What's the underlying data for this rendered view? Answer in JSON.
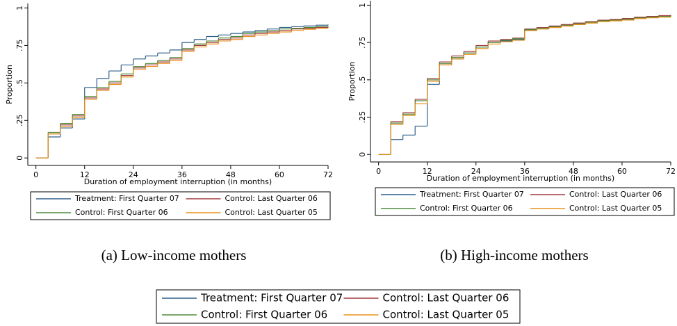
{
  "chart_data": [
    {
      "type": "step",
      "caption": "(a) Low-income mothers",
      "ylabel": "Proportion",
      "xlabel": "Duration of employment interruption (in months)",
      "x": [
        0,
        3,
        6,
        9,
        12,
        15,
        18,
        21,
        24,
        27,
        30,
        33,
        36,
        39,
        42,
        45,
        48,
        51,
        54,
        57,
        60,
        63,
        66,
        69,
        72
      ],
      "series": [
        {
          "name": "Treatment: First Quarter 07",
          "color": "#2f5f8a",
          "values": [
            0,
            0.14,
            0.2,
            0.26,
            0.47,
            0.53,
            0.58,
            0.62,
            0.66,
            0.68,
            0.7,
            0.72,
            0.77,
            0.79,
            0.81,
            0.82,
            0.83,
            0.84,
            0.85,
            0.86,
            0.87,
            0.875,
            0.88,
            0.885,
            0.89
          ]
        },
        {
          "name": "Control: Last Quarter 06",
          "color": "#a33a3f",
          "values": [
            0,
            0.16,
            0.22,
            0.28,
            0.4,
            0.46,
            0.5,
            0.55,
            0.6,
            0.62,
            0.64,
            0.66,
            0.72,
            0.75,
            0.77,
            0.79,
            0.8,
            0.82,
            0.83,
            0.84,
            0.85,
            0.86,
            0.865,
            0.87,
            0.875
          ]
        },
        {
          "name": "Control: First Quarter 06",
          "color": "#4f8a3a",
          "values": [
            0,
            0.17,
            0.23,
            0.29,
            0.41,
            0.47,
            0.51,
            0.56,
            0.61,
            0.63,
            0.65,
            0.67,
            0.73,
            0.76,
            0.78,
            0.8,
            0.81,
            0.83,
            0.84,
            0.85,
            0.86,
            0.865,
            0.87,
            0.875,
            0.88
          ]
        },
        {
          "name": "Control: Last Quarter 05",
          "color": "#e8901c",
          "values": [
            0,
            0.16,
            0.21,
            0.27,
            0.39,
            0.45,
            0.49,
            0.54,
            0.59,
            0.61,
            0.63,
            0.65,
            0.71,
            0.74,
            0.76,
            0.78,
            0.79,
            0.81,
            0.82,
            0.83,
            0.84,
            0.85,
            0.858,
            0.865,
            0.87
          ]
        }
      ],
      "xlim": [
        -2,
        72
      ],
      "xticks": [
        0,
        12,
        24,
        36,
        48,
        60,
        72
      ],
      "ylim": [
        -0.05,
        1.03
      ],
      "yticks": [
        0,
        {
          "value": 0.25,
          "label": ".25"
        },
        {
          "value": 0.5,
          "label": ".5"
        },
        {
          "value": 0.75,
          "label": ".75"
        },
        1
      ]
    },
    {
      "type": "step",
      "caption": "(b) High-income mothers",
      "ylabel": "Proportion",
      "xlabel": "Duration of employment interruption (in months)",
      "x": [
        0,
        3,
        6,
        9,
        12,
        15,
        18,
        21,
        24,
        27,
        30,
        33,
        36,
        39,
        42,
        45,
        48,
        51,
        54,
        57,
        60,
        63,
        66,
        69,
        72
      ],
      "series": [
        {
          "name": "Treatment: First Quarter 07",
          "color": "#2f5f8a",
          "values": [
            0,
            0.1,
            0.13,
            0.19,
            0.47,
            0.6,
            0.64,
            0.68,
            0.72,
            0.75,
            0.76,
            0.77,
            0.84,
            0.85,
            0.86,
            0.87,
            0.88,
            0.89,
            0.895,
            0.9,
            0.91,
            0.915,
            0.92,
            0.925,
            0.93
          ]
        },
        {
          "name": "Control: Last Quarter 06",
          "color": "#a33a3f",
          "values": [
            0,
            0.22,
            0.28,
            0.37,
            0.51,
            0.62,
            0.66,
            0.69,
            0.73,
            0.76,
            0.77,
            0.78,
            0.84,
            0.85,
            0.86,
            0.87,
            0.88,
            0.89,
            0.9,
            0.905,
            0.91,
            0.92,
            0.925,
            0.93,
            0.935
          ]
        },
        {
          "name": "Control: First Quarter 06",
          "color": "#4f8a3a",
          "values": [
            0,
            0.21,
            0.27,
            0.36,
            0.5,
            0.61,
            0.65,
            0.68,
            0.72,
            0.75,
            0.765,
            0.775,
            0.835,
            0.845,
            0.855,
            0.865,
            0.875,
            0.885,
            0.895,
            0.9,
            0.905,
            0.915,
            0.92,
            0.925,
            0.93
          ]
        },
        {
          "name": "Control: Last Quarter 05",
          "color": "#e8901c",
          "values": [
            0,
            0.2,
            0.26,
            0.34,
            0.49,
            0.6,
            0.64,
            0.67,
            0.71,
            0.74,
            0.755,
            0.765,
            0.83,
            0.84,
            0.85,
            0.86,
            0.87,
            0.88,
            0.89,
            0.895,
            0.9,
            0.91,
            0.915,
            0.92,
            0.925
          ]
        }
      ],
      "xlim": [
        -2,
        72
      ],
      "xticks": [
        0,
        12,
        24,
        36,
        48,
        60,
        72
      ],
      "ylim": [
        -0.05,
        1.03
      ],
      "yticks": [
        0,
        {
          "value": 0.25,
          "label": ".25"
        },
        {
          "value": 0.5,
          "label": ".5"
        },
        {
          "value": 0.75,
          "label": ".75"
        },
        1
      ]
    }
  ]
}
